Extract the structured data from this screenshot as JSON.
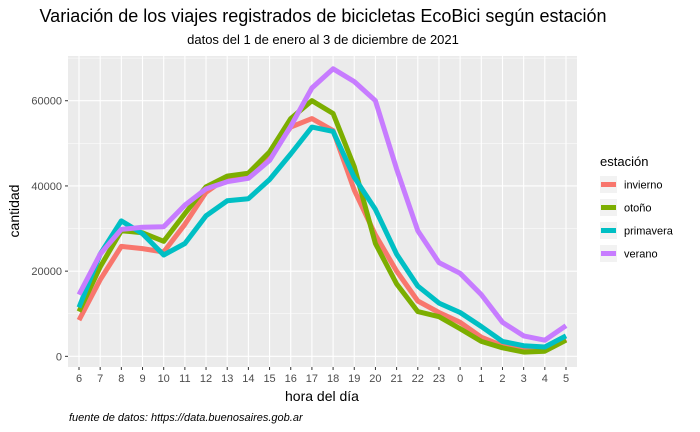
{
  "chart_data": {
    "type": "line",
    "title": "Variación de los viajes registrados de bicicletas EcoBici según estación",
    "subtitle": "datos del 1 de enero al 3 de diciembre de 2021",
    "xlabel": "hora del día",
    "ylabel": "cantidad",
    "caption": "fuente de datos: https://data.buenosaires.gob.ar",
    "categories": [
      "6",
      "7",
      "8",
      "9",
      "10",
      "11",
      "12",
      "13",
      "14",
      "15",
      "16",
      "17",
      "18",
      "19",
      "20",
      "21",
      "22",
      "23",
      "0",
      "1",
      "2",
      "3",
      "4",
      "5"
    ],
    "y_ticks": [
      0,
      20000,
      40000,
      60000
    ],
    "y_tick_labels": [
      "0",
      "20000",
      "40000",
      "60000"
    ],
    "ylim": [
      -2500,
      70500
    ],
    "grid": true,
    "legend_title": "estación",
    "legend_position": "right",
    "series": [
      {
        "name": "invierno",
        "color": "#F8766D",
        "values": [
          8500,
          18000,
          25800,
          25300,
          24500,
          31000,
          38500,
          42000,
          42500,
          47000,
          53800,
          55800,
          53000,
          39000,
          28500,
          20000,
          13000,
          10300,
          8000,
          4500,
          2500,
          1500,
          1500,
          4000
        ]
      },
      {
        "name": "otoño",
        "color": "#7CAE00",
        "values": [
          10500,
          21000,
          29500,
          29000,
          27000,
          33500,
          39800,
          42300,
          43000,
          48000,
          55800,
          60000,
          57000,
          44500,
          26500,
          17000,
          10500,
          9300,
          6500,
          3500,
          2000,
          1000,
          1200,
          3800
        ]
      },
      {
        "name": "primavera",
        "color": "#00BFC4",
        "values": [
          11500,
          24000,
          31800,
          28800,
          23800,
          26500,
          33000,
          36500,
          37000,
          41500,
          47500,
          53800,
          52800,
          42000,
          34500,
          24000,
          16500,
          12500,
          10300,
          7000,
          3500,
          2500,
          2200,
          4800
        ]
      },
      {
        "name": "verano",
        "color": "#C77CFF",
        "values": [
          14500,
          24000,
          29800,
          30300,
          30400,
          35500,
          39300,
          41000,
          41800,
          46000,
          54000,
          63000,
          67500,
          64500,
          60000,
          44000,
          29500,
          22000,
          19500,
          14500,
          8000,
          4800,
          3800,
          7200
        ]
      }
    ]
  }
}
